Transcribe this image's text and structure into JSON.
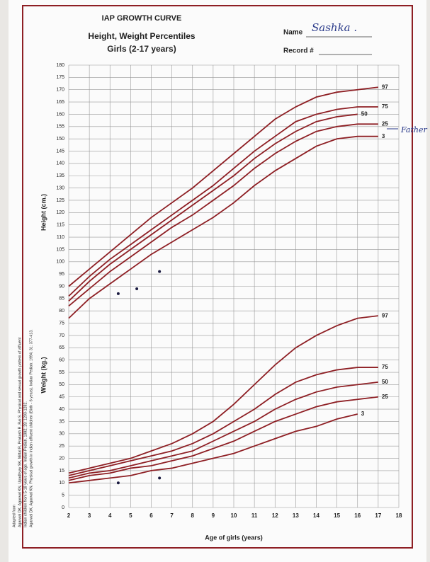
{
  "chart_data": {
    "type": "line",
    "title": "IAP GROWTH CURVE",
    "subtitle": "Height, Weight Percentiles",
    "subtitle2": "Girls (2-17 years)",
    "name_label": "Name",
    "name_value": "Sashka .",
    "record_label": "Record #",
    "annotation": "Father",
    "height_label": "Height (cm.)",
    "weight_label": "Weight (kg.)",
    "x_label": "Age of girls (years)",
    "citation": [
      "Adapted from",
      "Agarwal DK, Agarwal KN, Upadhyay SK, Mittal R, Prakash R, Rai S. Physical and sexual growth pattern of affluent",
      "Indian children from 5-18 years of age. Indian Pediatr. 1992; 29: 1203-1282.",
      "Agarwal DK, Agarwal KN. Physical growth in Indian affluent children (Birth - 6 years). Indian Pediatr. 1994; 31: 377-413."
    ],
    "x": [
      2,
      3,
      4,
      5,
      6,
      7,
      8,
      9,
      10,
      11,
      12,
      13,
      14,
      15,
      16,
      17
    ],
    "xlim": [
      2,
      18
    ],
    "xticks": [
      2,
      3,
      4,
      5,
      6,
      7,
      8,
      9,
      10,
      11,
      12,
      13,
      14,
      15,
      16,
      17,
      18
    ],
    "ylim": [
      0,
      180
    ],
    "yticks": [
      0,
      5,
      10,
      15,
      20,
      25,
      30,
      35,
      40,
      45,
      50,
      55,
      60,
      65,
      70,
      75,
      80,
      85,
      90,
      95,
      100,
      105,
      110,
      115,
      120,
      125,
      130,
      135,
      140,
      145,
      150,
      155,
      160,
      165,
      170,
      175,
      180
    ],
    "grid": true,
    "series": [
      {
        "name": "97",
        "color": "#8e1f24",
        "values": [
          90,
          97,
          104,
          111,
          118,
          124,
          130,
          137,
          144,
          151,
          158,
          163,
          167,
          169,
          170,
          171
        ]
      },
      {
        "name": "75",
        "color": "#8e1f24",
        "values": [
          86,
          94,
          101,
          107,
          113,
          119,
          125,
          131,
          138,
          145,
          151,
          157,
          160,
          162,
          163,
          163
        ]
      },
      {
        "name": "50",
        "color": "#8e1f24",
        "values": [
          84,
          92,
          99,
          105,
          111,
          117,
          123,
          129,
          135,
          142,
          148,
          153,
          157,
          159,
          160,
          null
        ]
      },
      {
        "name": "25",
        "color": "#8e1f24",
        "values": [
          82,
          89,
          96,
          102,
          108,
          114,
          119,
          125,
          131,
          138,
          144,
          149,
          153,
          155,
          156,
          156
        ]
      },
      {
        "name": "3",
        "color": "#8e1f24",
        "values": [
          77,
          85,
          91,
          97,
          103,
          108,
          113,
          118,
          124,
          131,
          137,
          142,
          147,
          150,
          151,
          151
        ]
      },
      {
        "name": "97",
        "color": "#8e1f24",
        "values": [
          14,
          16,
          18,
          20,
          23,
          26,
          30,
          35,
          42,
          50,
          58,
          65,
          70,
          74,
          77,
          78
        ]
      },
      {
        "name": "75",
        "color": "#8e1f24",
        "values": [
          13,
          15,
          17,
          19,
          21,
          23,
          26,
          30,
          35,
          40,
          46,
          51,
          54,
          56,
          57,
          57
        ]
      },
      {
        "name": "50",
        "color": "#8e1f24",
        "values": [
          12,
          14,
          15,
          17,
          19,
          21,
          23,
          27,
          31,
          35,
          40,
          44,
          47,
          49,
          50,
          51
        ]
      },
      {
        "name": "25",
        "color": "#8e1f24",
        "values": [
          11,
          13,
          14,
          16,
          17,
          19,
          21,
          24,
          27,
          31,
          35,
          38,
          41,
          43,
          44,
          45
        ]
      },
      {
        "name": "3",
        "color": "#8e1f24",
        "values": [
          10,
          11,
          12,
          13,
          15,
          16,
          18,
          20,
          22,
          25,
          28,
          31,
          33,
          36,
          38,
          null
        ]
      }
    ],
    "points": {
      "x": [
        4.4,
        5.3,
        6.4,
        4.4,
        6.4
      ],
      "y": [
        87,
        89,
        96,
        10,
        12
      ],
      "color": "#1a1a40"
    }
  }
}
